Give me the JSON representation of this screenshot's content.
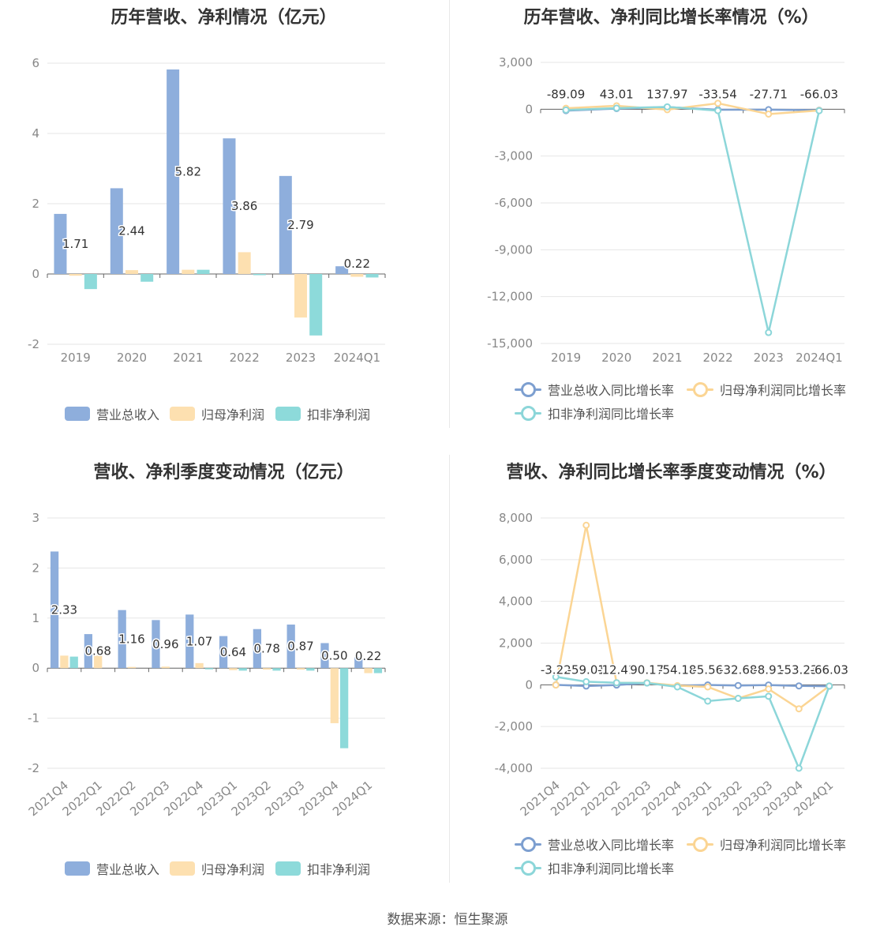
{
  "source_text": "数据来源：恒生聚源",
  "chart_data": [
    {
      "type": "bar",
      "title": "历年营收、净利情况（亿元）",
      "categories": [
        "2019",
        "2020",
        "2021",
        "2022",
        "2023",
        "2024Q1"
      ],
      "yticks": [
        "6",
        "4",
        "2",
        "0",
        "-2"
      ],
      "ylim": [
        -2,
        6
      ],
      "grid": true,
      "legend_position": "bottom",
      "series": [
        {
          "name": "营业总收入",
          "color": "#8eaedc",
          "values": [
            1.71,
            2.44,
            5.82,
            3.86,
            2.79,
            0.22
          ],
          "labels": [
            "1.71",
            "2.44",
            "5.82",
            "3.86",
            "2.79",
            "0.22"
          ]
        },
        {
          "name": "归母净利润",
          "color": "#fde0b0",
          "values": [
            -0.05,
            0.11,
            0.12,
            0.62,
            -1.24,
            -0.08
          ]
        },
        {
          "name": "扣非净利润",
          "color": "#8ddada",
          "values": [
            -0.43,
            -0.22,
            0.12,
            -0.02,
            -1.75,
            -0.1
          ]
        }
      ]
    },
    {
      "type": "line",
      "title": "历年营收、净利同比增长率情况（%）",
      "categories": [
        "2019",
        "2020",
        "2021",
        "2022",
        "2023",
        "2024Q1"
      ],
      "yticks": [
        "3,000",
        "0",
        "-3,000",
        "-6,000",
        "-9,000",
        "-12,000",
        "-15,000"
      ],
      "ylim": [
        -15000,
        3000
      ],
      "grid": true,
      "legend_position": "bottom",
      "series": [
        {
          "name": "营业总收入同比增长率",
          "color": "#7d9fd0",
          "values": [
            -89.09,
            43.01,
            137.97,
            -33.54,
            -27.71,
            -66.03
          ],
          "labels": [
            "-89.09",
            "43.01",
            "137.97",
            "-33.54",
            "-27.71",
            "-66.03"
          ]
        },
        {
          "name": "归母净利润同比增长率",
          "color": "#fbd594",
          "values": [
            60,
            220,
            -30,
            380,
            -310,
            -80
          ]
        },
        {
          "name": "扣非净利润同比增长率",
          "color": "#8cd6d9",
          "values": [
            -50,
            70,
            150,
            -90,
            -14300,
            -95
          ]
        }
      ]
    },
    {
      "type": "bar",
      "title": "营收、净利季度变动情况（亿元）",
      "categories": [
        "2021Q4",
        "2022Q1",
        "2022Q2",
        "2022Q3",
        "2022Q4",
        "2023Q1",
        "2023Q2",
        "2023Q3",
        "2023Q4",
        "2024Q1"
      ],
      "yticks": [
        "3",
        "2",
        "1",
        "0",
        "-1",
        "-2"
      ],
      "ylim": [
        -2,
        3
      ],
      "grid": true,
      "legend_position": "bottom",
      "series": [
        {
          "name": "营业总收入",
          "color": "#8eaedc",
          "values": [
            2.33,
            0.68,
            1.16,
            0.96,
            1.07,
            0.64,
            0.78,
            0.87,
            0.5,
            0.22
          ],
          "labels": [
            "2.33",
            "0.68",
            "1.16",
            "0.96",
            "1.07",
            "0.64",
            "0.78",
            "0.87",
            "0.50",
            "0.22"
          ]
        },
        {
          "name": "归母净利润",
          "color": "#fde0b0",
          "values": [
            0.25,
            0.25,
            0.01,
            0.03,
            0.1,
            -0.04,
            -0.03,
            -0.03,
            -1.1,
            -0.1
          ]
        },
        {
          "name": "扣非净利润",
          "color": "#8ddada",
          "values": [
            0.23,
            0.0,
            0.0,
            0.0,
            -0.02,
            -0.05,
            -0.05,
            -0.05,
            -1.6,
            -0.1
          ]
        }
      ]
    },
    {
      "type": "line",
      "title": "营收、净利同比增长率季度变动情况（%）",
      "categories": [
        "2021Q4",
        "2022Q1",
        "2022Q2",
        "2022Q3",
        "2022Q4",
        "2023Q1",
        "2023Q2",
        "2023Q3",
        "2023Q4",
        "2024Q1"
      ],
      "yticks": [
        "8,000",
        "6,000",
        "4,000",
        "2,000",
        "0",
        "-2,000",
        "-4,000"
      ],
      "ylim": [
        -4000,
        8000
      ],
      "grid": true,
      "legend_position": "bottom",
      "series": [
        {
          "name": "营业总收入同比增长率",
          "color": "#7d9fd0",
          "values": [
            -3.22,
            -59.01,
            -12.41,
            90.17,
            -54.18,
            -5.56,
            -32.68,
            -8.91,
            -53.23,
            -66.03
          ],
          "labels": [
            "-3.22",
            "-59.01",
            "-12.41",
            "90.17",
            "-54.18",
            "-5.56",
            "-32.68",
            "-8.91",
            "-53.23",
            "-66.03"
          ]
        },
        {
          "name": "归母净利润同比增长率",
          "color": "#fbd594",
          "values": [
            -10,
            7650,
            100,
            100,
            -40,
            -100,
            -650,
            -200,
            -1150,
            -60
          ]
        },
        {
          "name": "扣非净利润同比增长率",
          "color": "#8cd6d9",
          "values": [
            380,
            150,
            100,
            90,
            -100,
            -780,
            -650,
            -550,
            -4000,
            -60
          ]
        }
      ]
    }
  ]
}
